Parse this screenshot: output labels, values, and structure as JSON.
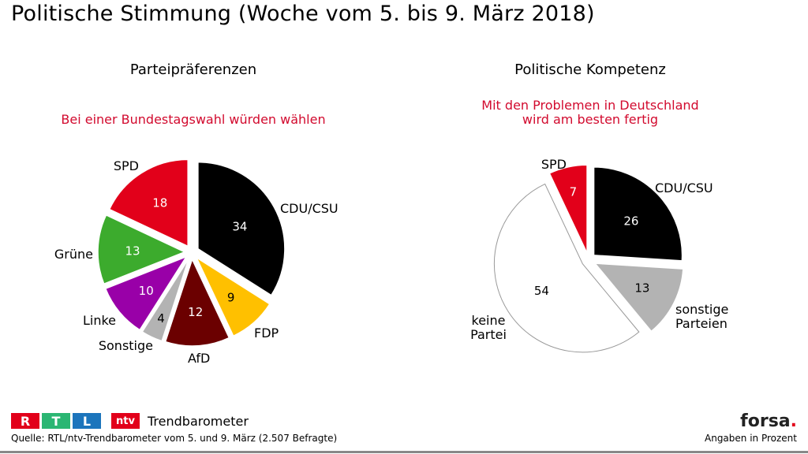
{
  "page": {
    "title": "Politische Stimmung (Woche vom 5. bis 9. März 2018)",
    "source": "Quelle: RTL/ntv-Trendbarometer vom 5. und 9. März (2.507 Befragte)",
    "unit_note": "Angaben in Prozent",
    "brand": {
      "rtl": [
        "R",
        "T",
        "L"
      ],
      "rtl_colors": [
        "#e2001a",
        "#2bb673",
        "#1c75bc"
      ],
      "ntv": "ntv",
      "trend": "Trendbarometer",
      "forsa": "forsa",
      "forsa_dot": "."
    }
  },
  "chart_data": [
    {
      "type": "pie",
      "title": "Parteipräferenzen",
      "subtitle": "Bei einer Bundestagswahl würden wählen",
      "slices": [
        {
          "label": "CDU/CSU",
          "value": 34,
          "color": "#000000",
          "text_color": "#ffffff"
        },
        {
          "label": "FDP",
          "value": 9,
          "color": "#ffc000",
          "text_color": "#000000"
        },
        {
          "label": "AfD",
          "value": 12,
          "color": "#6b0000",
          "text_color": "#ffffff"
        },
        {
          "label": "Sonstige",
          "value": 4,
          "color": "#b3b3b3",
          "text_color": "#000000"
        },
        {
          "label": "Linke",
          "value": 10,
          "color": "#9900a8",
          "text_color": "#ffffff"
        },
        {
          "label": "Grüne",
          "value": 13,
          "color": "#3cab2d",
          "text_color": "#ffffff"
        },
        {
          "label": "SPD",
          "value": 18,
          "color": "#e2001a",
          "text_color": "#ffffff"
        }
      ]
    },
    {
      "type": "pie",
      "title": "Politische Kompetenz",
      "subtitle": [
        "Mit den Problemen in Deutschland",
        "wird am besten fertig"
      ],
      "slices": [
        {
          "label": "CDU/CSU",
          "value": 26,
          "color": "#000000",
          "text_color": "#ffffff"
        },
        {
          "label": "sonstige Parteien",
          "label_lines": [
            "sonstige",
            "Parteien"
          ],
          "value": 13,
          "color": "#b3b3b3",
          "text_color": "#000000"
        },
        {
          "label": "keine Partei",
          "label_lines": [
            "keine",
            "Partei"
          ],
          "value": 54,
          "color": "#ffffff",
          "text_color": "#000000"
        },
        {
          "label": "SPD",
          "value": 7,
          "color": "#e2001a",
          "text_color": "#ffffff"
        }
      ]
    }
  ]
}
